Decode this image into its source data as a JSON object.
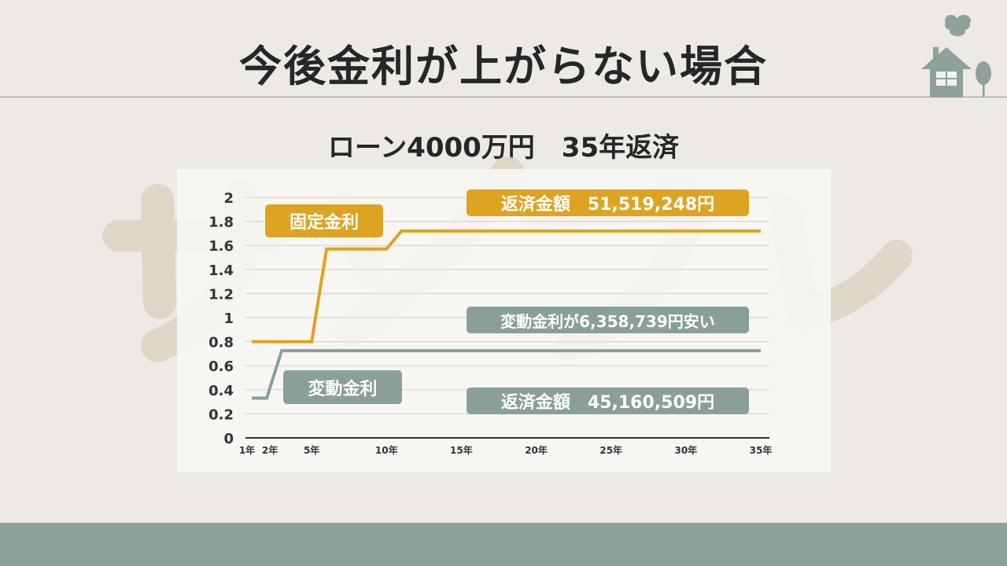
{
  "slide": {
    "title": "今後金利が上がらない場合",
    "subtitle": "ローン4000万円　35年返済"
  },
  "watermark": {
    "text": "サンプル"
  },
  "annotations": {
    "fixed_label": "固定金利",
    "variable_label": "変動金利",
    "fixed_total": "返済金額　51,519,248円",
    "difference": "変動金利が6,358,739円安い",
    "variable_total": "返済金額　45,160,509円"
  },
  "colors": {
    "fixed": "#dca422",
    "variable": "#8a9f97",
    "axis": "#333333",
    "grid": "#cfcfcf",
    "background": "#ede9e4",
    "footer": "#8ea29a"
  },
  "icons": [
    "house-icon",
    "cloud-icon",
    "tree-icon"
  ],
  "chart_data": {
    "type": "line",
    "x_unit": "year",
    "ylim": [
      0,
      2
    ],
    "yticks": [
      "0",
      "0.2",
      "0.4",
      "0.6",
      "0.8",
      "1",
      "1.2",
      "1.4",
      "1.6",
      "1.8",
      "2"
    ],
    "xticks": [
      {
        "x": 1,
        "label": "1年"
      },
      {
        "x": 2,
        "label": "2年"
      },
      {
        "x": 5,
        "label": "5年"
      },
      {
        "x": 10,
        "label": "10年"
      },
      {
        "x": 15,
        "label": "15年"
      },
      {
        "x": 20,
        "label": "20年"
      },
      {
        "x": 25,
        "label": "25年"
      },
      {
        "x": 30,
        "label": "30年"
      },
      {
        "x": 35,
        "label": "35年"
      }
    ],
    "grid": true,
    "series": [
      {
        "name": "固定金利",
        "color": "#dca422",
        "points": [
          [
            1,
            0.8
          ],
          [
            5,
            0.8
          ],
          [
            6,
            1.57
          ],
          [
            10,
            1.57
          ],
          [
            11,
            1.72
          ],
          [
            35,
            1.72
          ]
        ]
      },
      {
        "name": "変動金利",
        "color": "#8a9f97",
        "points": [
          [
            1,
            0.33
          ],
          [
            2,
            0.33
          ],
          [
            3,
            0.725
          ],
          [
            35,
            0.725
          ]
        ]
      }
    ]
  }
}
